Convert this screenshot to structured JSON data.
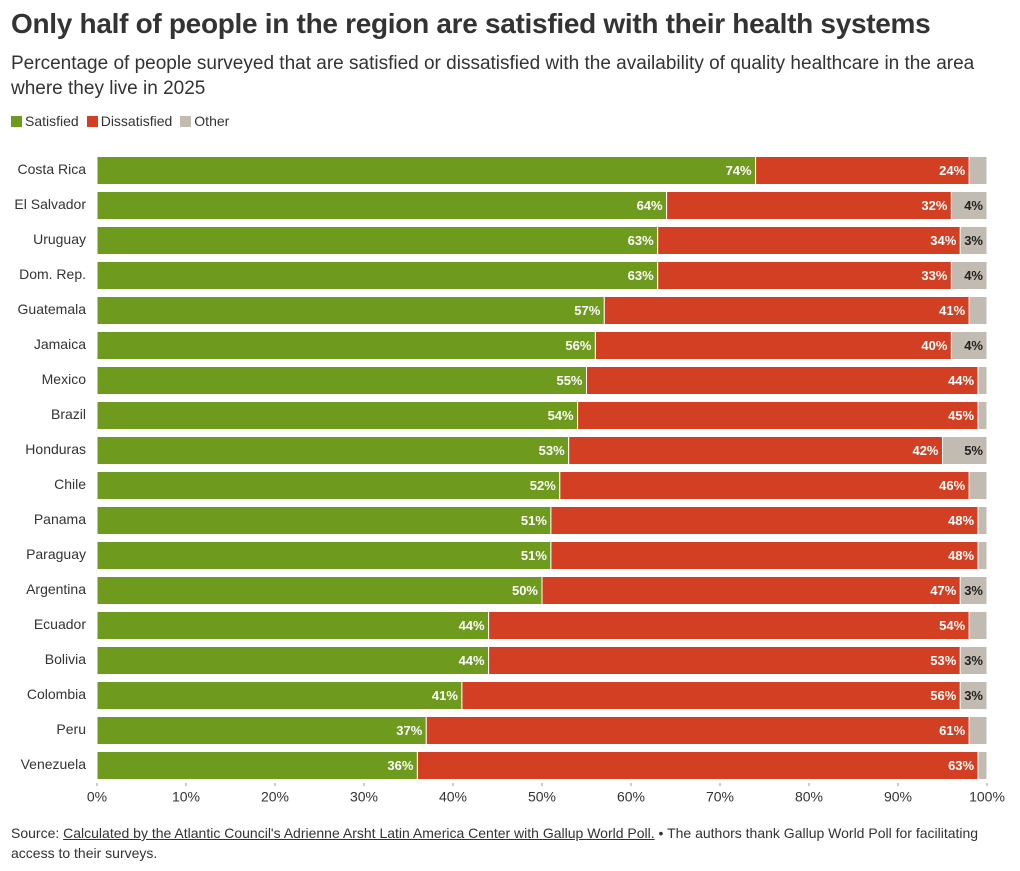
{
  "chart_data": {
    "type": "stacked_bar_horizontal",
    "title": "Only half of people in the region are satisfied with their health systems",
    "subtitle": "Percentage of people surveyed that are satisfied or dissatisfied with the availability of quality healthcare in the area where they live in 2025",
    "categories": [
      "Costa Rica",
      "El Salvador",
      "Uruguay",
      "Dom. Rep.",
      "Guatemala",
      "Jamaica",
      "Mexico",
      "Brazil",
      "Honduras",
      "Chile",
      "Panama",
      "Paraguay",
      "Argentina",
      "Ecuador",
      "Bolivia",
      "Colombia",
      "Peru",
      "Venezuela"
    ],
    "series": [
      {
        "name": "Satisfied",
        "color": "#6e9a1e",
        "label_color": "#ffffff",
        "values": [
          74,
          64,
          63,
          63,
          57,
          56,
          55,
          54,
          53,
          52,
          51,
          51,
          50,
          44,
          44,
          41,
          37,
          36
        ],
        "value_labels": [
          "74%",
          "64%",
          "63%",
          "63%",
          "57%",
          "56%",
          "55%",
          "54%",
          "53%",
          "52%",
          "51%",
          "51%",
          "50%",
          "44%",
          "44%",
          "41%",
          "37%",
          "36%"
        ]
      },
      {
        "name": "Dissatisfied",
        "color": "#d23f22",
        "label_color": "#ffffff",
        "values": [
          24,
          32,
          34,
          33,
          41,
          40,
          44,
          45,
          42,
          46,
          48,
          48,
          47,
          54,
          53,
          56,
          61,
          63
        ],
        "value_labels": [
          "24%",
          "32%",
          "34%",
          "33%",
          "41%",
          "40%",
          "44%",
          "45%",
          "42%",
          "46%",
          "48%",
          "48%",
          "47%",
          "54%",
          "53%",
          "56%",
          "61%",
          "63%"
        ]
      },
      {
        "name": "Other",
        "color": "#c2bbb1",
        "label_color": "#222222",
        "values": [
          2,
          4,
          3,
          4,
          2,
          4,
          1,
          1,
          5,
          2,
          1,
          1,
          3,
          2,
          3,
          3,
          2,
          1
        ],
        "value_labels": [
          null,
          "4%",
          "3%",
          "4%",
          null,
          "4%",
          null,
          null,
          "5%",
          null,
          null,
          null,
          "3%",
          null,
          "3%",
          "3%",
          null,
          null
        ]
      }
    ],
    "xlim": [
      0,
      100
    ],
    "xticks": [
      {
        "value": 0,
        "label": "0%"
      },
      {
        "value": 10,
        "label": "10%"
      },
      {
        "value": 20,
        "label": "20%"
      },
      {
        "value": 30,
        "label": "30%"
      },
      {
        "value": 40,
        "label": "40%"
      },
      {
        "value": 50,
        "label": "50%"
      },
      {
        "value": 60,
        "label": "60%"
      },
      {
        "value": 70,
        "label": "70%"
      },
      {
        "value": 80,
        "label": "80%"
      },
      {
        "value": 90,
        "label": "90%"
      },
      {
        "value": 100,
        "label": "100%"
      }
    ],
    "legend": "top-left",
    "source_prefix": "Source: ",
    "source_link": "Calculated by the Atlantic Council's Adrienne Arsht Latin America Center with Gallup World Poll.",
    "source_suffix": " • The authors thank Gallup World Poll for facilitating access to their surveys."
  }
}
